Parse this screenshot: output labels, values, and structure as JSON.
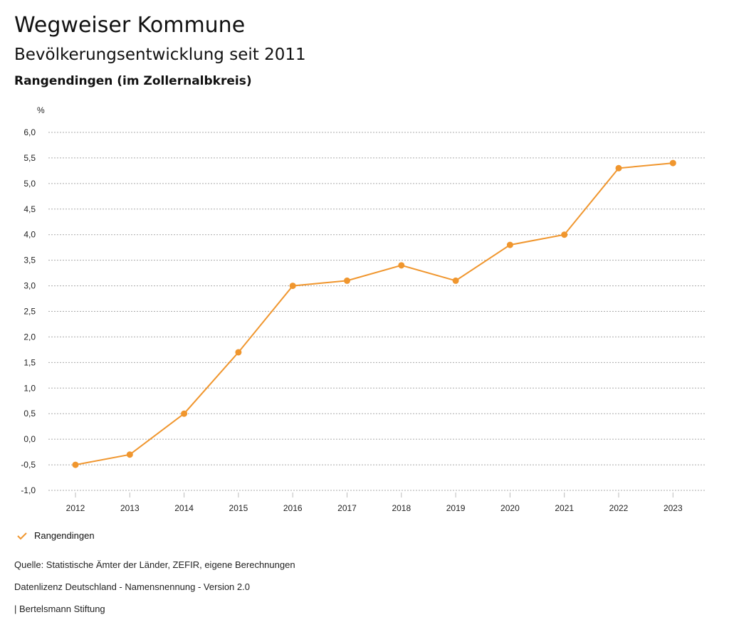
{
  "header": {
    "title": "Wegweiser Kommune",
    "subtitle": "Bevölkerungsentwicklung seit 2011",
    "region": "Rangendingen (im Zollernalbkreis)"
  },
  "chart_data": {
    "type": "line",
    "ylabel": "%",
    "ylim": [
      -1.0,
      6.0
    ],
    "yticks": [
      "6,0",
      "5,5",
      "5,0",
      "4,5",
      "4,0",
      "3,5",
      "3,0",
      "2,5",
      "2,0",
      "1,5",
      "1,0",
      "0,5",
      "0,0",
      "-0,5",
      "-1,0"
    ],
    "categories": [
      "2012",
      "2013",
      "2014",
      "2015",
      "2016",
      "2017",
      "2018",
      "2019",
      "2020",
      "2021",
      "2022",
      "2023"
    ],
    "series": [
      {
        "name": "Rangendingen",
        "color": "#f0962e",
        "values": [
          -0.5,
          -0.3,
          0.5,
          1.7,
          3.0,
          3.1,
          3.4,
          3.1,
          3.8,
          4.0,
          5.3,
          5.4
        ]
      }
    ],
    "grid": true,
    "legend": "bottom-left"
  },
  "footer": {
    "source": "Quelle: Statistische Ämter der Länder, ZEFIR, eigene Berechnungen",
    "license": "Datenlizenz Deutschland - Namensnennung - Version 2.0",
    "brand": "| Bertelsmann Stiftung"
  }
}
